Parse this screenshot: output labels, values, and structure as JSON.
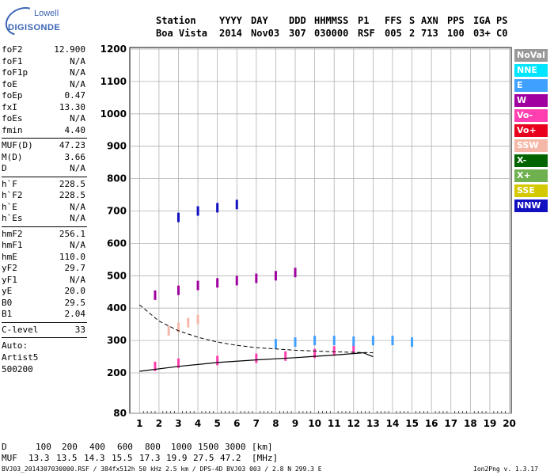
{
  "logo": {
    "top": "Lowell",
    "bottom": "DIGISONDE"
  },
  "header": {
    "labels": [
      "Station",
      "YYYY",
      "DAY",
      "DDD",
      "HHMMSS",
      "P1",
      "FFS",
      "S",
      "AXN",
      "PPS",
      "IGA",
      "PS"
    ],
    "values": [
      "Boa Vista",
      "2014",
      "Nov03",
      "307",
      "030000",
      "RSF",
      "005",
      "2",
      "713",
      "100",
      "03+",
      "C0"
    ]
  },
  "parameters": {
    "group1": [
      {
        "name": "foF2",
        "value": "12.900"
      },
      {
        "name": "foF1",
        "value": "N/A"
      },
      {
        "name": "foF1p",
        "value": "N/A"
      },
      {
        "name": "foE",
        "value": "N/A"
      },
      {
        "name": "foEp",
        "value": "0.47"
      },
      {
        "name": "fxI",
        "value": "13.30"
      },
      {
        "name": "foEs",
        "value": "N/A"
      },
      {
        "name": "fmin",
        "value": "4.40"
      }
    ],
    "group2": [
      {
        "name": "MUF(D)",
        "value": "47.23"
      },
      {
        "name": "M(D)",
        "value": "3.66"
      },
      {
        "name": "D",
        "value": "N/A"
      }
    ],
    "group3": [
      {
        "name": "h`F",
        "value": "228.5"
      },
      {
        "name": "h`F2",
        "value": "228.5"
      },
      {
        "name": "h`E",
        "value": "N/A"
      },
      {
        "name": "h`Es",
        "value": "N/A"
      }
    ],
    "group4": [
      {
        "name": "hmF2",
        "value": "256.1"
      },
      {
        "name": "hmF1",
        "value": "N/A"
      },
      {
        "name": "hmE",
        "value": "110.0"
      },
      {
        "name": "yF2",
        "value": "29.7"
      },
      {
        "name": "yF1",
        "value": "N/A"
      },
      {
        "name": "yE",
        "value": "20.0"
      },
      {
        "name": "B0",
        "value": "29.5"
      },
      {
        "name": "B1",
        "value": "2.04"
      }
    ],
    "group5": [
      {
        "name": "C-level",
        "value": "33"
      }
    ],
    "auto": [
      "Auto:",
      "Artist5",
      "500200"
    ]
  },
  "legend": [
    {
      "label": "NoVal",
      "color": "#999999"
    },
    {
      "label": "NNE",
      "color": "#00e5ff"
    },
    {
      "label": "E",
      "color": "#3fa0ff"
    },
    {
      "label": "W",
      "color": "#a000a0"
    },
    {
      "label": "Vo-",
      "color": "#ff3fb0"
    },
    {
      "label": "Vo+",
      "color": "#e8001c"
    },
    {
      "label": "SSW",
      "color": "#f5b8a8"
    },
    {
      "label": "X-",
      "color": "#006400"
    },
    {
      "label": "X+",
      "color": "#6fb04f"
    },
    {
      "label": "SSE",
      "color": "#d4c800"
    },
    {
      "label": "NNW",
      "color": "#1010c0"
    }
  ],
  "chart_data": {
    "type": "scatter",
    "x_ticks": [
      "1",
      "2",
      "3",
      "4",
      "5",
      "6",
      "7",
      "8",
      "9",
      "10",
      "11",
      "12",
      "13",
      "14",
      "15",
      "16",
      "17",
      "18",
      "19",
      "20"
    ],
    "y_ticks": [
      "80",
      "200",
      "300",
      "400",
      "500",
      "600",
      "700",
      "800",
      "900",
      "1000",
      "1100",
      "1200"
    ],
    "xlim": [
      0.5,
      20.1
    ],
    "ylim": [
      80,
      1200
    ],
    "grid": true,
    "freq_unit": "MHz",
    "height_unit": "km",
    "echo_traces": [
      {
        "direction": "Vo-",
        "x": [
          1.8,
          3,
          5,
          7,
          8.5,
          10,
          11,
          12
        ],
        "y": [
          220,
          230,
          238,
          245,
          252,
          260,
          268,
          275
        ]
      },
      {
        "direction": "W",
        "x": [
          1.8,
          3,
          4,
          5,
          6,
          7,
          8,
          9
        ],
        "y": [
          440,
          455,
          470,
          478,
          485,
          492,
          500,
          510
        ]
      },
      {
        "direction": "E",
        "x": [
          8,
          9,
          10,
          11,
          12,
          13,
          14,
          15
        ],
        "y": [
          290,
          295,
          300,
          300,
          298,
          300,
          300,
          295
        ]
      },
      {
        "direction": "SSW",
        "x": [
          2.5,
          3,
          3.5,
          4
        ],
        "y": [
          330,
          340,
          355,
          365
        ]
      },
      {
        "direction": "NNW",
        "x": [
          3,
          4,
          5,
          6
        ],
        "y": [
          680,
          700,
          710,
          720
        ]
      }
    ],
    "profile_curve": {
      "x": [
        1,
        3,
        5,
        7,
        9,
        11,
        12.5,
        13
      ],
      "y": [
        205,
        220,
        232,
        240,
        247,
        255,
        262,
        250
      ]
    },
    "dashed_curve": {
      "x": [
        1,
        2,
        3,
        4,
        5,
        6,
        7,
        9,
        11,
        13
      ],
      "y": [
        410,
        360,
        330,
        310,
        295,
        285,
        278,
        270,
        265,
        262
      ]
    }
  },
  "footer": {
    "d_label": "D",
    "d_values": [
      "100",
      "200",
      "400",
      "600",
      "800",
      "1000",
      "1500",
      "3000"
    ],
    "d_unit": "[km]",
    "muf_label": "MUF",
    "muf_values": [
      "13.3",
      "13.5",
      "14.3",
      "15.5",
      "17.3",
      "19.9",
      "27.5",
      "47.2"
    ],
    "muf_unit": "[MHz]",
    "file_info": "BVJ03_2014307030000.RSF / 384fx512h 50 kHz 2.5 km / DPS-4D BVJ03 003 / 2.8 N 299.3 E",
    "version": "Ion2Png v. 1.3.17"
  }
}
